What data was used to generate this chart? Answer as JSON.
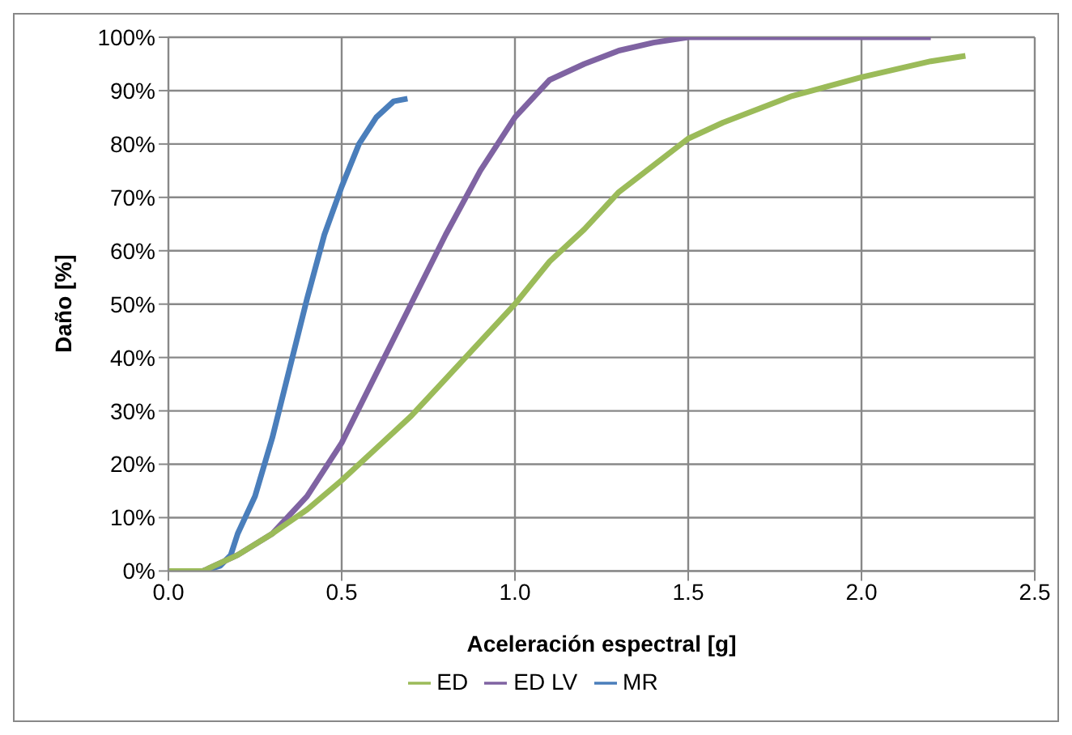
{
  "chart_data": {
    "type": "line",
    "xlabel": "Aceleración espectral [g]",
    "ylabel": "Daño [%]",
    "xlim": [
      0,
      2.5
    ],
    "xticks": [
      {
        "value": 0,
        "label": "0.0"
      },
      {
        "value": 0.5,
        "label": "0.5"
      },
      {
        "value": 1,
        "label": "1.0"
      },
      {
        "value": 1.5,
        "label": "1.5"
      },
      {
        "value": 2,
        "label": "2.0"
      },
      {
        "value": 2.5,
        "label": "2.5"
      }
    ],
    "ylim": [
      0,
      100
    ],
    "yticks": [
      {
        "value": 0,
        "label": "0%"
      },
      {
        "value": 10,
        "label": "10%"
      },
      {
        "value": 20,
        "label": "20%"
      },
      {
        "value": 30,
        "label": "30%"
      },
      {
        "value": 40,
        "label": "40%"
      },
      {
        "value": 50,
        "label": "50%"
      },
      {
        "value": 60,
        "label": "60%"
      },
      {
        "value": 70,
        "label": "70%"
      },
      {
        "value": 80,
        "label": "80%"
      },
      {
        "value": 90,
        "label": "90%"
      },
      {
        "value": 100,
        "label": "100%"
      }
    ],
    "grid": true,
    "legend": "bottom",
    "marker": "none",
    "line_style": "solid",
    "series": [
      {
        "name": "MR",
        "color": "#4a7ebb",
        "x": [
          0,
          0.1,
          0.15,
          0.18,
          0.2,
          0.25,
          0.3,
          0.35,
          0.4,
          0.45,
          0.5,
          0.55,
          0.6,
          0.65,
          0.69
        ],
        "values": [
          0,
          0,
          1,
          3,
          7,
          14,
          25,
          38,
          51,
          63,
          72,
          80,
          85,
          88,
          88.5
        ]
      },
      {
        "name": "ED LV",
        "color": "#7f63a2",
        "x": [
          0,
          0.1,
          0.2,
          0.3,
          0.4,
          0.5,
          0.6,
          0.7,
          0.8,
          0.9,
          1.0,
          1.1,
          1.2,
          1.3,
          1.4,
          1.5,
          1.6,
          2.2
        ],
        "values": [
          0,
          0,
          3,
          7,
          14,
          24,
          37,
          50,
          63,
          75,
          85,
          92,
          95,
          97.5,
          99,
          100,
          100,
          100
        ]
      },
      {
        "name": "ED",
        "color": "#9bbb59",
        "x": [
          0,
          0.1,
          0.2,
          0.3,
          0.4,
          0.5,
          0.6,
          0.7,
          0.8,
          0.9,
          1.0,
          1.1,
          1.2,
          1.3,
          1.4,
          1.5,
          1.6,
          1.8,
          2.0,
          2.2,
          2.3
        ],
        "values": [
          0,
          0,
          3,
          7,
          11.5,
          17,
          23,
          29,
          36,
          43,
          50,
          58,
          64,
          71,
          76,
          81,
          84,
          89,
          92.5,
          95.5,
          96.5
        ]
      }
    ]
  }
}
